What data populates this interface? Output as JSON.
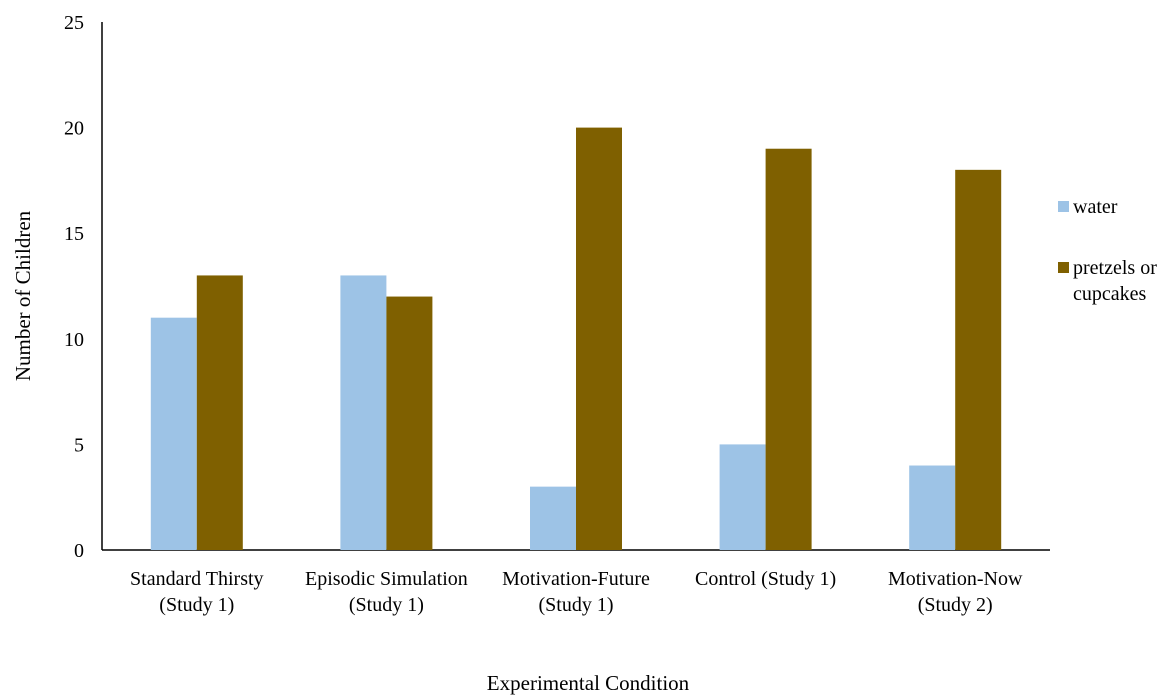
{
  "chart_data": {
    "type": "bar",
    "title": "",
    "xlabel": "Experimental Condition",
    "ylabel": "Number of Children",
    "ylim": [
      0,
      25
    ],
    "yticks": [
      "0",
      "5",
      "10",
      "15",
      "20",
      "25"
    ],
    "grid": false,
    "legend_position": "right",
    "categories": [
      [
        "Standard Thirsty",
        "(Study 1)"
      ],
      [
        "Episodic Simulation",
        "(Study 1)"
      ],
      [
        "Motivation-Future",
        "(Study 1)"
      ],
      [
        "Control (Study 1)"
      ],
      [
        "Motivation-Now",
        "(Study 2)"
      ]
    ],
    "series": [
      {
        "name": [
          "water"
        ],
        "values": [
          11,
          13,
          3,
          5,
          4
        ],
        "color": "#9DC3E6"
      },
      {
        "name": [
          "pretzels or",
          "cupcakes"
        ],
        "values": [
          13,
          12,
          20,
          19,
          18
        ],
        "color": "#7F6000"
      }
    ]
  }
}
